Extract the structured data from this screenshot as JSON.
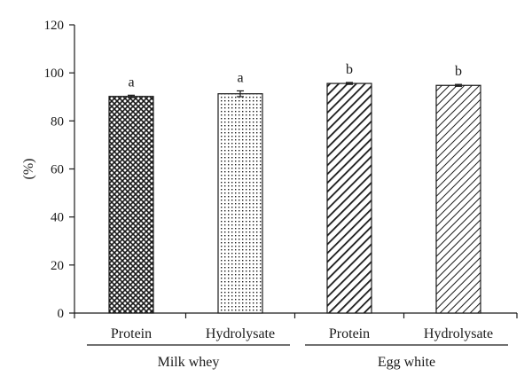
{
  "chart_data": {
    "type": "bar",
    "ylabel": "(%)",
    "xlabel": "",
    "ylim": [
      0,
      120
    ],
    "yticks": [
      0,
      20,
      40,
      60,
      80,
      100,
      120
    ],
    "grid": false,
    "bars": [
      {
        "group": "Milk whey",
        "category": "Protein",
        "value": 90.2,
        "error": 0.5,
        "significance": "a",
        "pattern": "crosshatch"
      },
      {
        "group": "Milk whey",
        "category": "Hydrolysate",
        "value": 91.3,
        "error": 1.2,
        "significance": "a",
        "pattern": "dots"
      },
      {
        "group": "Egg white",
        "category": "Protein",
        "value": 95.6,
        "error": 0.4,
        "significance": "b",
        "pattern": "dense-diagonal"
      },
      {
        "group": "Egg white",
        "category": "Hydrolysate",
        "value": 94.8,
        "error": 0.4,
        "significance": "b",
        "pattern": "sparse-diagonal"
      }
    ],
    "groups": [
      {
        "name": "Milk whey",
        "bars": [
          0,
          1
        ]
      },
      {
        "name": "Egg white",
        "bars": [
          2,
          3
        ]
      }
    ]
  },
  "colors": {
    "ink": "#1a1a1a",
    "background": "#ffffff"
  }
}
